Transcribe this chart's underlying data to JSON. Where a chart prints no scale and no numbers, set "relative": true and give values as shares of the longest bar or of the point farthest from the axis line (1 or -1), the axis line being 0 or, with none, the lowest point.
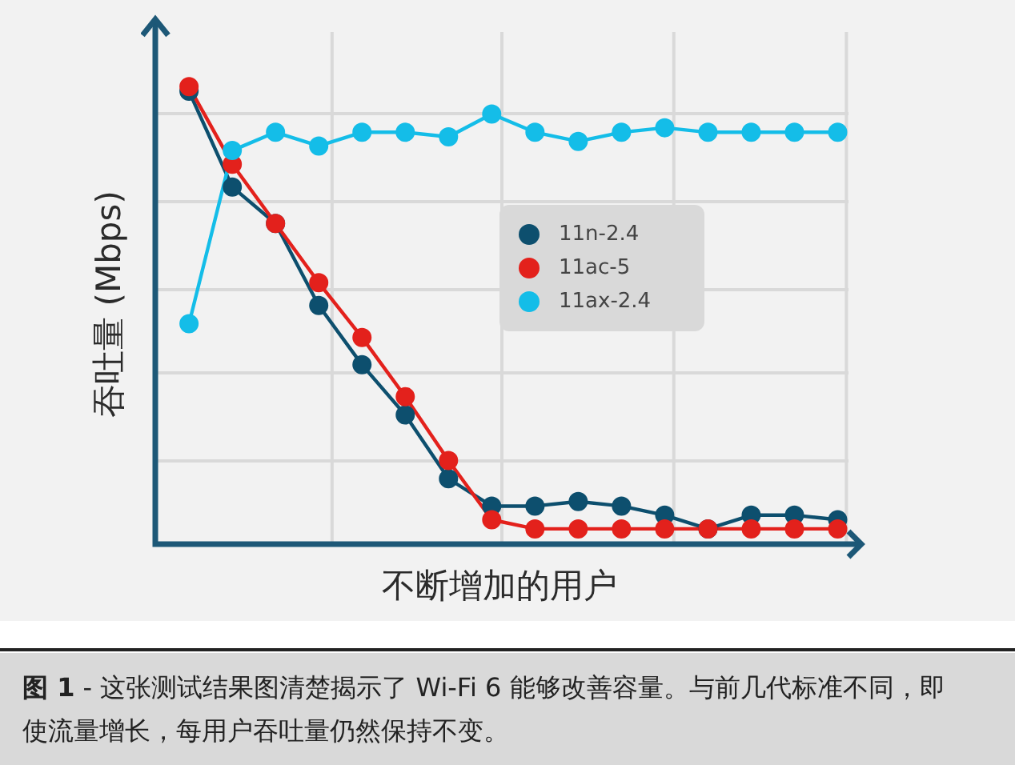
{
  "chart_data": {
    "type": "line",
    "relative": true,
    "xlabel": "不断增加的用户",
    "ylabel": "吞吐量 (Mbps)",
    "categories": [
      null,
      null,
      null,
      null,
      null,
      null,
      null,
      null,
      null,
      null,
      null,
      null,
      null,
      null,
      null,
      null
    ],
    "series": [
      {
        "name": "11n-2.4",
        "color": "#0d4f6e",
        "values": [
          0.99,
          0.78,
          0.7,
          0.52,
          0.39,
          0.28,
          0.14,
          0.08,
          0.08,
          0.09,
          0.08,
          0.06,
          0.03,
          0.06,
          0.06,
          0.05
        ]
      },
      {
        "name": "11ac-5",
        "color": "#e3211c",
        "values": [
          1,
          0.83,
          0.7,
          0.57,
          0.45,
          0.32,
          0.18,
          0.05,
          0.03,
          0.03,
          0.03,
          0.03,
          0.03,
          0.03,
          0.03,
          0.03
        ]
      },
      {
        "name": "11ax-2.4",
        "color": "#14bde8",
        "values": [
          0.48,
          0.86,
          0.9,
          0.87,
          0.9,
          0.9,
          0.89,
          0.94,
          0.9,
          0.88,
          0.9,
          0.91,
          0.9,
          0.9,
          0.9,
          0.9
        ]
      }
    ],
    "grid": true,
    "legend": "center",
    "marker": "circle",
    "line_style": "solid",
    "annotations": [
      "图 1 - 这张测试结果图清楚揭示了 Wi-Fi 6 能够改善容量。与前几代标准不同，即使流量增长，每用户吞吐量仍然保持不变。"
    ]
  }
}
